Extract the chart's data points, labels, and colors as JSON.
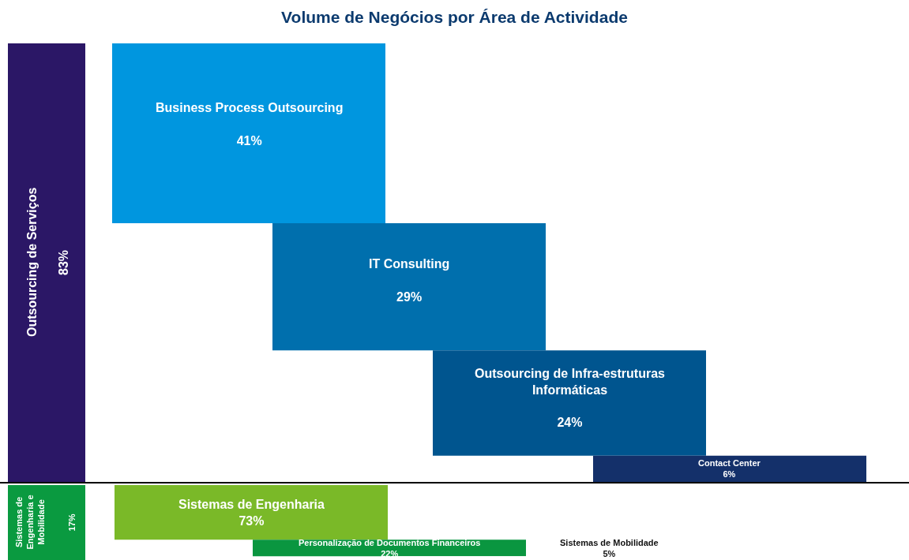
{
  "chart_data": [
    {
      "type": "other",
      "title": "Volume de Negócios por Área de Actividade",
      "ylabel": "Outsourcing de Serviços",
      "annotations": [
        "83%"
      ],
      "categories": [
        "Business Process Outsourcing",
        "IT Consulting",
        "Outsourcing de Infra-estruturas Informáticas",
        "Contact Center"
      ],
      "values": [
        41,
        29,
        24,
        6
      ],
      "value_labels": [
        "41%",
        "29%",
        "24%",
        "6%"
      ],
      "colors": [
        "#0096df",
        "#006fad",
        "#00558f",
        "#14306a"
      ]
    },
    {
      "type": "other",
      "ylabel": "Sistemas de Engenharia e Mobilidade",
      "annotations": [
        "17%"
      ],
      "categories": [
        "Sistemas de Engenharia",
        "Personalização de Documentos Financeiros",
        "Sistemas de Mobilidade"
      ],
      "values": [
        73,
        22,
        5
      ],
      "value_labels": [
        "73%",
        "22%",
        "5%"
      ],
      "colors": [
        "#7ab928",
        "#0a9640",
        "#ffffff"
      ]
    }
  ]
}
